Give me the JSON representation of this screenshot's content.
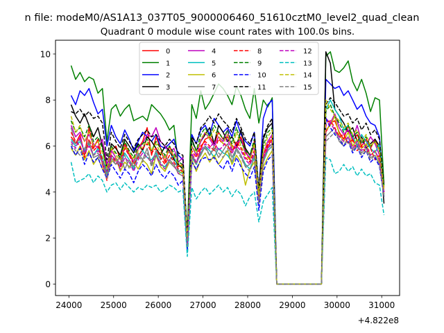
{
  "header": {
    "suptitle": "n file: modeM0/AS1A13_037T05_9000006460_51610cztM0_level2_quad_clean",
    "title": "Quadrant 0 module wise count rates with 100.0s bins."
  },
  "chart_data": {
    "type": "line",
    "title": "Quadrant 0 module wise count rates with 100.0s bins.",
    "xlabel": "",
    "ylabel": "",
    "x_offset_label": "+4.822e8",
    "xlim": [
      23700,
      31400
    ],
    "ylim": [
      -0.5,
      10.6
    ],
    "x_ticks": [
      24000,
      25000,
      26000,
      27000,
      28000,
      29000,
      30000,
      31000
    ],
    "y_ticks": [
      0,
      2,
      4,
      6,
      8,
      10
    ],
    "x_tick_labels": [
      "24000",
      "25000",
      "26000",
      "27000",
      "28000",
      "29000",
      "30000",
      "31000"
    ],
    "y_tick_labels": [
      "0",
      "2",
      "4",
      "6",
      "8",
      "10"
    ],
    "grid": false,
    "legend_position": "top-center",
    "legend_columns": 4,
    "segments": {
      "seg1": {
        "start": 24050,
        "step": 100,
        "count": 26
      },
      "seg2": {
        "start": 26650,
        "step": 100,
        "count": 20
      },
      "gap_values": {
        "x": [
          28650,
          28750,
          28850,
          28950,
          29050,
          29150,
          29250,
          29350,
          29450,
          29550,
          29650
        ],
        "y": 0
      },
      "seg3": {
        "start": 29650,
        "step": 100,
        "count": 15
      }
    },
    "series": [
      {
        "name": "0",
        "color": "#ff0000",
        "dash": "solid",
        "seg1": [
          6.4,
          6.1,
          6.5,
          5.6,
          6.8,
          5.9,
          6.3,
          5.2,
          4.6,
          5.8,
          6.0,
          5.4,
          6.1,
          5.7,
          5.3,
          5.9,
          6.2,
          6.8,
          5.6,
          6.4,
          5.9,
          5.3,
          6.0,
          5.5,
          5.1,
          5.2
        ],
        "seg2": [
          1.8,
          5.6,
          5.2,
          5.9,
          6.3,
          6.4,
          6.1,
          6.6,
          6.3,
          6.4,
          6.0,
          5.9,
          6.4,
          5.8,
          5.4,
          6.2,
          3.8,
          5.4,
          6.0,
          6.3
        ],
        "seg3": [
          0.0,
          6.6,
          7.0,
          7.1,
          6.6,
          6.3,
          6.9,
          6.2,
          6.5,
          6.0,
          6.3,
          5.9,
          6.3,
          5.8,
          4.2
        ]
      },
      {
        "name": "1",
        "color": "#008000",
        "dash": "solid",
        "seg1": [
          9.5,
          8.9,
          9.2,
          8.8,
          9.0,
          8.9,
          8.3,
          8.5,
          6.2,
          7.6,
          7.8,
          7.3,
          7.6,
          7.8,
          7.1,
          7.2,
          7.3,
          7.1,
          7.8,
          7.6,
          7.4,
          7.1,
          6.7,
          6.9,
          5.2,
          5.1
        ],
        "seg2": [
          2.2,
          7.8,
          7.2,
          8.4,
          7.6,
          7.9,
          8.3,
          8.7,
          8.5,
          8.2,
          7.8,
          8.6,
          8.2,
          7.6,
          7.2,
          8.5,
          7.0,
          8.0,
          7.7,
          8.1
        ],
        "seg3": [
          0.0,
          9.9,
          10.1,
          9.3,
          9.2,
          9.4,
          9.7,
          8.8,
          8.4,
          8.9,
          8.3,
          7.5,
          8.1,
          8.0,
          4.3
        ]
      },
      {
        "name": "2",
        "color": "#0000ff",
        "dash": "solid",
        "seg1": [
          8.2,
          7.8,
          8.4,
          8.2,
          8.5,
          7.9,
          7.4,
          7.6,
          6.0,
          6.9,
          6.4,
          6.1,
          6.7,
          6.3,
          5.8,
          6.2,
          6.6,
          6.4,
          6.2,
          6.5,
          6.0,
          5.9,
          6.1,
          6.3,
          5.6,
          5.4
        ],
        "seg2": [
          2.0,
          6.5,
          6.1,
          6.7,
          6.9,
          6.5,
          7.2,
          6.9,
          6.6,
          6.8,
          6.4,
          7.1,
          6.5,
          6.2,
          6.0,
          6.6,
          4.0,
          7.2,
          7.8,
          8.0
        ],
        "seg3": [
          0.0,
          8.9,
          8.7,
          8.5,
          8.6,
          8.2,
          8.4,
          8.0,
          7.6,
          7.8,
          7.3,
          7.0,
          6.9,
          6.4,
          3.8
        ]
      },
      {
        "name": "3",
        "color": "#000000",
        "dash": "solid",
        "seg1": [
          7.8,
          7.3,
          7.0,
          7.4,
          6.9,
          6.4,
          6.8,
          6.0,
          5.1,
          6.1,
          5.9,
          5.6,
          6.3,
          6.0,
          5.7,
          6.1,
          5.8,
          6.4,
          6.2,
          5.9,
          5.6,
          6.0,
          5.8,
          5.4,
          5.2,
          5.0
        ],
        "seg2": [
          1.9,
          6.3,
          5.8,
          6.2,
          6.5,
          6.8,
          6.1,
          6.9,
          6.6,
          6.2,
          6.4,
          6.0,
          6.7,
          5.9,
          5.6,
          6.1,
          3.9,
          6.3,
          6.8,
          7.0
        ],
        "seg3": [
          0.0,
          10.1,
          9.6,
          7.6,
          7.3,
          7.0,
          6.6,
          6.8,
          6.2,
          6.4,
          5.9,
          6.1,
          6.3,
          6.0,
          3.5
        ]
      },
      {
        "name": "4",
        "color": "#bf00bf",
        "dash": "solid",
        "seg1": [
          6.9,
          6.4,
          6.6,
          6.2,
          6.5,
          6.1,
          5.9,
          6.3,
          5.2,
          5.8,
          5.5,
          5.2,
          6.0,
          5.6,
          5.3,
          5.9,
          6.1,
          6.5,
          6.4,
          6.8,
          6.2,
          6.0,
          5.7,
          5.9,
          5.3,
          5.5
        ],
        "seg2": [
          1.7,
          6.0,
          5.6,
          6.2,
          6.6,
          6.3,
          6.0,
          6.4,
          6.2,
          6.7,
          5.8,
          6.1,
          6.3,
          5.7,
          5.5,
          6.0,
          3.6,
          5.6,
          6.2,
          6.5
        ],
        "seg3": [
          0.0,
          7.2,
          7.0,
          7.4,
          6.8,
          6.5,
          6.7,
          6.3,
          6.9,
          6.2,
          6.0,
          6.4,
          6.1,
          5.6,
          4.0
        ]
      },
      {
        "name": "5",
        "color": "#00bfbf",
        "dash": "solid",
        "seg1": [
          6.3,
          6.0,
          6.2,
          5.8,
          6.1,
          5.6,
          5.9,
          5.5,
          4.8,
          5.6,
          5.4,
          5.1,
          5.7,
          5.4,
          5.0,
          5.6,
          5.8,
          5.5,
          5.4,
          5.7,
          5.2,
          5.1,
          5.4,
          5.6,
          4.9,
          4.8
        ],
        "seg2": [
          1.6,
          5.5,
          5.2,
          5.7,
          6.0,
          5.8,
          5.5,
          5.9,
          5.7,
          5.6,
          5.3,
          5.9,
          5.6,
          5.2,
          5.0,
          5.5,
          3.6,
          5.3,
          5.8,
          6.0
        ],
        "seg3": [
          0.0,
          7.6,
          8.0,
          7.6,
          7.3,
          6.7,
          6.9,
          6.4,
          6.0,
          6.5,
          6.2,
          5.9,
          5.7,
          6.1,
          3.9
        ]
      },
      {
        "name": "6",
        "color": "#bfbf00",
        "dash": "solid",
        "seg1": [
          5.9,
          5.6,
          6.0,
          5.4,
          5.8,
          5.2,
          5.5,
          5.0,
          4.7,
          5.3,
          5.5,
          4.9,
          5.3,
          5.1,
          5.3,
          5.0,
          5.4,
          5.2,
          4.8,
          5.6,
          5.1,
          4.9,
          5.3,
          5.2,
          4.8,
          4.9
        ],
        "seg2": [
          1.5,
          5.4,
          4.9,
          5.4,
          5.7,
          5.3,
          5.6,
          5.2,
          5.5,
          5.8,
          5.2,
          5.6,
          5.3,
          4.3,
          5.0,
          5.3,
          3.5,
          5.1,
          5.5,
          5.8
        ],
        "seg3": [
          0.0,
          6.7,
          6.9,
          7.3,
          6.5,
          6.2,
          6.6,
          6.0,
          6.3,
          5.9,
          6.1,
          5.6,
          5.8,
          5.3,
          3.9
        ]
      },
      {
        "name": "7",
        "color": "#808080",
        "dash": "solid",
        "seg1": [
          6.8,
          6.1,
          6.3,
          5.7,
          6.2,
          5.5,
          5.6,
          5.3,
          4.7,
          5.5,
          5.2,
          5.6,
          5.0,
          5.4,
          5.1,
          5.7,
          5.4,
          5.9,
          5.2,
          5.8,
          5.4,
          5.6,
          5.3,
          5.1,
          4.9,
          5.0
        ],
        "seg2": [
          1.6,
          5.6,
          5.3,
          5.6,
          6.0,
          5.6,
          5.9,
          5.5,
          5.8,
          6.1,
          5.5,
          5.9,
          5.6,
          5.1,
          5.2,
          5.6,
          3.7,
          5.4,
          5.9,
          6.1
        ],
        "seg3": [
          0.0,
          6.4,
          6.6,
          6.8,
          6.2,
          6.0,
          6.4,
          5.8,
          6.1,
          5.7,
          5.9,
          5.5,
          5.6,
          5.2,
          3.8
        ]
      },
      {
        "name": "8",
        "color": "#ff0000",
        "dash": "dashed",
        "seg1": [
          6.6,
          6.2,
          6.0,
          5.5,
          6.3,
          5.8,
          6.0,
          5.4,
          4.5,
          5.6,
          5.3,
          5.1,
          5.9,
          5.6,
          5.2,
          5.5,
          5.9,
          6.1,
          5.7,
          5.9,
          5.5,
          5.2,
          5.6,
          5.3,
          5.0,
          4.9
        ],
        "seg2": [
          1.8,
          5.8,
          5.5,
          6.0,
          6.2,
          6.0,
          5.8,
          6.3,
          6.1,
          6.0,
          5.7,
          6.2,
          5.9,
          5.5,
          5.3,
          5.8,
          3.8,
          5.6,
          6.1,
          6.4
        ],
        "seg3": [
          0.0,
          7.0,
          7.1,
          6.8,
          6.4,
          6.5,
          6.1,
          6.3,
          5.8,
          6.0,
          5.7,
          5.9,
          5.4,
          5.6,
          4.0
        ]
      },
      {
        "name": "9",
        "color": "#008000",
        "dash": "dashed",
        "seg1": [
          7.1,
          6.6,
          6.8,
          6.4,
          6.9,
          6.2,
          6.4,
          5.9,
          4.9,
          6.0,
          5.7,
          5.5,
          6.2,
          5.8,
          5.5,
          6.0,
          6.1,
          6.3,
          5.8,
          6.2,
          5.9,
          5.6,
          6.0,
          5.7,
          5.3,
          5.2
        ],
        "seg2": [
          1.9,
          6.2,
          5.8,
          6.5,
          6.8,
          6.4,
          6.9,
          6.6,
          6.3,
          6.7,
          6.1,
          6.8,
          6.2,
          5.8,
          5.6,
          6.3,
          4.0,
          6.0,
          6.6,
          6.8
        ],
        "seg3": [
          0.0,
          7.5,
          7.8,
          7.3,
          7.0,
          6.6,
          6.9,
          6.4,
          6.6,
          6.1,
          6.4,
          6.0,
          6.2,
          5.8,
          4.2
        ]
      },
      {
        "name": "10",
        "color": "#0000ff",
        "dash": "dashed",
        "seg1": [
          6.0,
          5.6,
          5.9,
          5.2,
          5.7,
          5.3,
          5.5,
          5.0,
          4.6,
          5.2,
          4.9,
          4.6,
          5.0,
          4.8,
          4.4,
          4.9,
          5.2,
          5.0,
          4.7,
          5.2,
          4.8,
          4.6,
          4.9,
          4.7,
          4.3,
          4.5
        ],
        "seg2": [
          1.4,
          5.3,
          5.0,
          5.4,
          5.5,
          5.4,
          5.5,
          5.2,
          5.0,
          5.4,
          4.9,
          5.5,
          5.1,
          4.8,
          4.6,
          5.1,
          3.2,
          4.9,
          5.4,
          5.6
        ],
        "seg3": [
          0.0,
          7.2,
          6.8,
          6.5,
          6.3,
          6.0,
          6.2,
          5.7,
          6.0,
          5.5,
          5.8,
          5.3,
          5.5,
          5.1,
          3.8
        ]
      },
      {
        "name": "11",
        "color": "#000000",
        "dash": "dashed",
        "seg1": [
          7.5,
          7.4,
          7.6,
          7.3,
          7.5,
          7.2,
          7.3,
          7.0,
          5.4,
          6.6,
          6.2,
          5.9,
          6.5,
          6.2,
          5.9,
          6.3,
          6.5,
          6.7,
          6.4,
          6.5,
          6.2,
          6.0,
          6.3,
          6.1,
          5.7,
          5.6
        ],
        "seg2": [
          2.0,
          6.4,
          6.1,
          6.8,
          7.0,
          7.3,
          7.0,
          7.4,
          7.1,
          6.9,
          6.6,
          7.2,
          6.8,
          6.3,
          6.1,
          6.6,
          4.1,
          6.4,
          6.9,
          7.2
        ],
        "seg3": [
          0.0,
          7.8,
          8.1,
          7.9,
          7.6,
          7.3,
          7.4,
          7.0,
          7.2,
          6.7,
          7.0,
          6.5,
          6.7,
          6.3,
          4.3
        ]
      },
      {
        "name": "12",
        "color": "#bf00bf",
        "dash": "dashed",
        "seg1": [
          6.2,
          5.9,
          6.4,
          5.7,
          6.0,
          5.6,
          5.8,
          5.3,
          4.9,
          5.6,
          5.4,
          5.0,
          5.5,
          5.3,
          4.9,
          5.4,
          5.7,
          5.5,
          5.3,
          5.6,
          5.2,
          5.0,
          5.4,
          5.2,
          4.8,
          4.7
        ],
        "seg2": [
          1.7,
          5.7,
          5.3,
          5.8,
          6.1,
          5.9,
          6.2,
          5.8,
          6.0,
          6.3,
          5.7,
          6.0,
          5.8,
          5.4,
          5.2,
          5.7,
          3.6,
          5.5,
          5.9,
          6.2
        ],
        "seg3": [
          0.0,
          6.9,
          7.0,
          6.7,
          6.4,
          6.2,
          6.4,
          5.9,
          6.2,
          5.8,
          6.0,
          5.6,
          5.8,
          5.4,
          4.0
        ]
      },
      {
        "name": "13",
        "color": "#00bfbf",
        "dash": "dashed",
        "seg1": [
          5.3,
          4.4,
          4.5,
          4.6,
          4.8,
          4.4,
          4.7,
          4.5,
          4.0,
          4.3,
          4.4,
          4.1,
          4.4,
          4.2,
          4.0,
          4.2,
          4.1,
          4.3,
          4.2,
          4.3,
          4.0,
          4.1,
          4.3,
          4.2,
          4.0,
          4.1
        ],
        "seg2": [
          1.2,
          4.2,
          3.7,
          4.0,
          4.2,
          3.9,
          4.1,
          4.3,
          4.0,
          4.2,
          3.8,
          4.1,
          3.9,
          3.4,
          3.8,
          4.0,
          2.7,
          3.6,
          3.9,
          4.2
        ],
        "seg3": [
          0.0,
          5.5,
          5.4,
          4.8,
          4.9,
          5.2,
          4.9,
          5.1,
          4.7,
          5.0,
          4.7,
          4.8,
          4.4,
          4.3,
          3.0
        ]
      },
      {
        "name": "14",
        "color": "#bfbf00",
        "dash": "dashed",
        "seg1": [
          7.3,
          6.6,
          6.9,
          6.2,
          6.6,
          6.0,
          6.2,
          5.7,
          5.0,
          5.9,
          5.6,
          5.4,
          6.0,
          5.7,
          5.4,
          5.8,
          6.0,
          6.2,
          5.8,
          6.1,
          5.7,
          5.5,
          5.8,
          5.6,
          5.2,
          5.1
        ],
        "seg2": [
          1.9,
          6.0,
          5.7,
          6.3,
          6.6,
          6.3,
          6.7,
          6.4,
          6.1,
          6.5,
          5.9,
          6.6,
          6.0,
          5.6,
          5.4,
          6.1,
          3.9,
          5.8,
          6.4,
          6.7
        ],
        "seg3": [
          0.0,
          8.0,
          7.6,
          7.3,
          7.1,
          6.8,
          7.0,
          6.5,
          6.7,
          6.2,
          6.5,
          6.0,
          6.2,
          5.8,
          4.1
        ]
      },
      {
        "name": "15",
        "color": "#808080",
        "dash": "dashed",
        "seg1": [
          6.1,
          5.8,
          5.6,
          5.9,
          6.2,
          5.6,
          5.7,
          5.3,
          4.6,
          5.4,
          5.2,
          5.3,
          5.6,
          5.0,
          5.3,
          5.6,
          5.3,
          5.7,
          5.1,
          5.6,
          5.3,
          5.0,
          5.4,
          5.2,
          4.8,
          4.7
        ],
        "seg2": [
          1.6,
          5.5,
          5.2,
          5.7,
          5.9,
          5.6,
          6.0,
          5.7,
          5.5,
          5.9,
          5.3,
          5.8,
          5.5,
          5.1,
          4.9,
          5.6,
          3.5,
          5.3,
          5.8,
          6.0
        ],
        "seg3": [
          0.0,
          6.2,
          6.4,
          6.6,
          6.3,
          6.1,
          6.2,
          5.8,
          6.0,
          5.6,
          5.8,
          5.4,
          5.6,
          5.2,
          3.8
        ]
      }
    ]
  }
}
